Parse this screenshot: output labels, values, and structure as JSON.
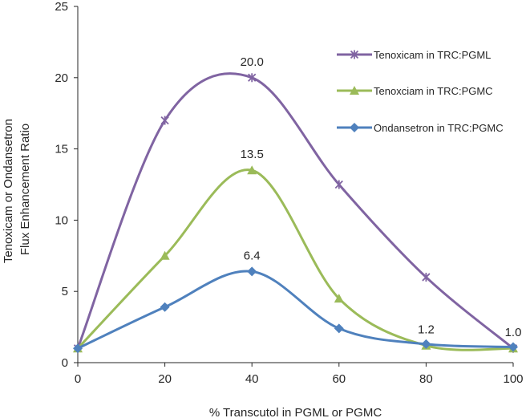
{
  "chart_data": {
    "type": "line",
    "xlabel": "% Transcutol in PGML or PGMC",
    "ylabel_lines": [
      "Tenoxicam or Ondansetron",
      "Flux Enhancement Ratio"
    ],
    "xlim": [
      0,
      100
    ],
    "ylim": [
      0,
      25
    ],
    "xticks": [
      0,
      20,
      40,
      60,
      80,
      100
    ],
    "yticks": [
      0,
      5,
      10,
      15,
      20,
      25
    ],
    "xtick_labels": [
      "0",
      "20",
      "40",
      "60",
      "80",
      "100"
    ],
    "ytick_labels": [
      "0",
      "5",
      "10",
      "15",
      "20",
      "25"
    ],
    "grid": false,
    "legend_position": "top-right",
    "x": [
      0,
      20,
      40,
      60,
      80,
      100
    ],
    "series": [
      {
        "name": "Tenoxicam in TRC:PGML",
        "color": "#8064A2",
        "marker": "star",
        "values": [
          1.0,
          17.0,
          20.0,
          12.5,
          6.0,
          1.0
        ]
      },
      {
        "name": "Tenoxciam in TRC:PGMC",
        "color": "#9BBB59",
        "marker": "triangle",
        "values": [
          1.0,
          7.5,
          13.5,
          4.5,
          1.2,
          1.0
        ]
      },
      {
        "name": "Ondansetron in TRC:PGMC",
        "color": "#4F81BD",
        "marker": "diamond",
        "values": [
          1.0,
          3.9,
          6.4,
          2.4,
          1.3,
          1.1
        ]
      }
    ],
    "annotations": [
      {
        "text": "20.0",
        "x": 40,
        "y": 20.0
      },
      {
        "text": "13.5",
        "x": 40,
        "y": 13.5
      },
      {
        "text": "6.4",
        "x": 40,
        "y": 6.4
      },
      {
        "text": "1.2",
        "x": 80,
        "y": 1.2
      },
      {
        "text": "1.0",
        "x": 100,
        "y": 1.0
      }
    ]
  }
}
